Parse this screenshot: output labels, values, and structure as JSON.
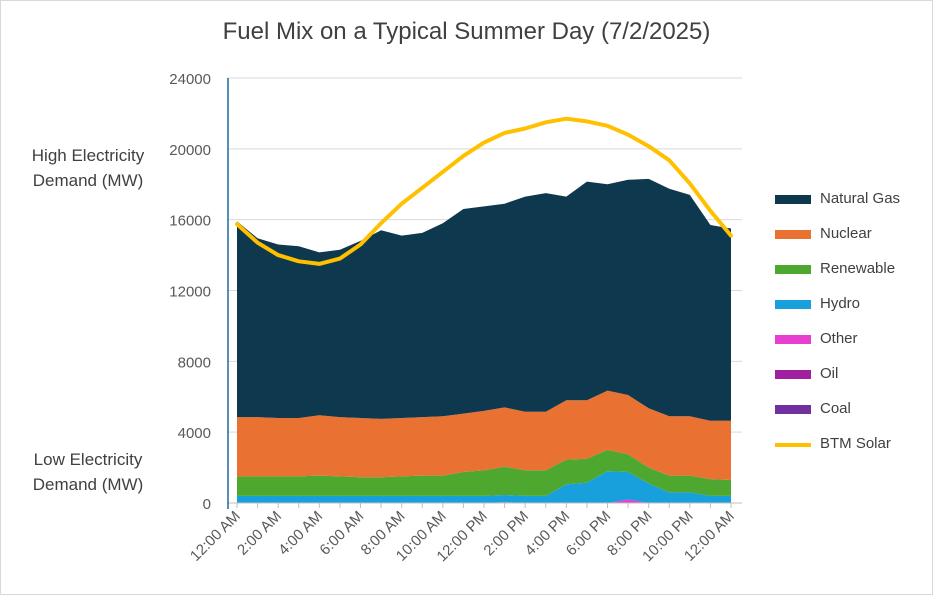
{
  "chart_data": {
    "type": "area",
    "title": "Fuel Mix on a Typical Summer Day (7/2/2025)",
    "ylabel_high": [
      "High Electricity",
      "Demand (MW)"
    ],
    "ylabel_low": [
      "Low Electricity",
      "Demand (MW)"
    ],
    "ylim": [
      0,
      24000
    ],
    "yticks": [
      "0",
      "4000",
      "8000",
      "12000",
      "16000",
      "20000",
      "24000"
    ],
    "ytick_values": [
      0,
      4000,
      8000,
      12000,
      16000,
      20000,
      24000
    ],
    "grid": true,
    "legend_position": "right",
    "x": [
      "12:00 AM",
      "1:00 AM",
      "2:00 AM",
      "3:00 AM",
      "4:00 AM",
      "5:00 AM",
      "6:00 AM",
      "7:00 AM",
      "8:00 AM",
      "9:00 AM",
      "10:00 AM",
      "11:00 AM",
      "12:00 PM",
      "1:00 PM",
      "2:00 PM",
      "3:00 PM",
      "4:00 PM",
      "5:00 PM",
      "6:00 PM",
      "7:00 PM",
      "8:00 PM",
      "9:00 PM",
      "10:00 PM",
      "11:00 PM",
      "12:00 AM"
    ],
    "xtick_labels": [
      "12:00 AM",
      "2:00 AM",
      "4:00 AM",
      "6:00 AM",
      "8:00 AM",
      "10:00 AM",
      "12:00 PM",
      "2:00 PM",
      "4:00 PM",
      "6:00 PM",
      "8:00 PM",
      "10:00 PM",
      "12:00 AM"
    ],
    "series": [
      {
        "name": "Coal",
        "color": "#7030a0",
        "kind": "area",
        "values": [
          0,
          0,
          0,
          0,
          0,
          0,
          0,
          0,
          0,
          0,
          0,
          0,
          0,
          0,
          0,
          0,
          0,
          0,
          0,
          0,
          0,
          0,
          0,
          0,
          0
        ]
      },
      {
        "name": "Oil",
        "color": "#a020a0",
        "kind": "area",
        "values": [
          0,
          0,
          0,
          0,
          0,
          0,
          0,
          0,
          0,
          0,
          0,
          0,
          0,
          0,
          0,
          0,
          0,
          0,
          0,
          0,
          0,
          0,
          0,
          0,
          0
        ]
      },
      {
        "name": "Other",
        "color": "#e83fd0",
        "kind": "area",
        "values": [
          0,
          0,
          0,
          0,
          0,
          0,
          0,
          0,
          0,
          0,
          0,
          0,
          0,
          50,
          0,
          0,
          0,
          0,
          0,
          200,
          0,
          0,
          0,
          0,
          0
        ]
      },
      {
        "name": "Hydro",
        "color": "#18a0dc",
        "kind": "area",
        "values": [
          400,
          400,
          400,
          400,
          400,
          400,
          400,
          400,
          400,
          400,
          400,
          400,
          400,
          400,
          400,
          400,
          1050,
          1150,
          1800,
          1550,
          1100,
          600,
          600,
          400,
          400
        ]
      },
      {
        "name": "Renewable",
        "color": "#4ea72e",
        "kind": "area",
        "values": [
          1100,
          1100,
          1100,
          1100,
          1150,
          1100,
          1050,
          1050,
          1100,
          1150,
          1150,
          1350,
          1450,
          1600,
          1450,
          1450,
          1400,
          1350,
          1200,
          1000,
          900,
          950,
          950,
          950,
          900
        ]
      },
      {
        "name": "Nuclear",
        "color": "#e97132",
        "kind": "area",
        "values": [
          3350,
          3350,
          3300,
          3300,
          3400,
          3350,
          3350,
          3300,
          3300,
          3300,
          3350,
          3300,
          3350,
          3350,
          3300,
          3300,
          3350,
          3300,
          3350,
          3350,
          3350,
          3350,
          3350,
          3300,
          3350
        ]
      },
      {
        "name": "Natural Gas",
        "color": "#0e384e",
        "kind": "area",
        "values": [
          11050,
          10100,
          9800,
          9700,
          9200,
          9450,
          10000,
          10650,
          10300,
          10400,
          10900,
          11550,
          11550,
          11500,
          12150,
          12350,
          11500,
          12350,
          11650,
          12150,
          12950,
          12850,
          12500,
          11050,
          10850
        ]
      },
      {
        "name": "BTM Solar",
        "color": "#ffc000",
        "kind": "line",
        "values": [
          15750,
          14700,
          14000,
          13650,
          13500,
          13800,
          14600,
          15800,
          16900,
          17800,
          18700,
          19600,
          20350,
          20900,
          21150,
          21500,
          21700,
          21550,
          21300,
          20800,
          20150,
          19350,
          18050,
          16500,
          15100
        ]
      }
    ],
    "legend_order": [
      "Natural Gas",
      "Nuclear",
      "Renewable",
      "Hydro",
      "Other",
      "Oil",
      "Coal",
      "BTM Solar"
    ]
  }
}
